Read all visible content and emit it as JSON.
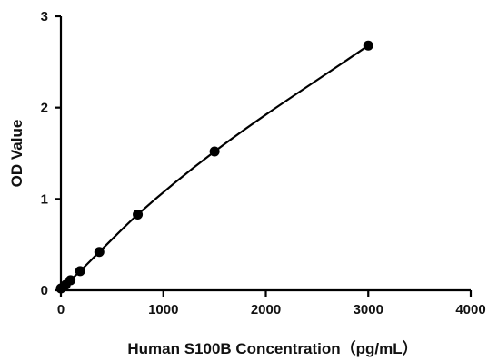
{
  "chart_data": {
    "type": "scatter",
    "title": "",
    "xlabel": "Human S100B  Concentration（pg/mL）",
    "ylabel": "OD Value",
    "xlim": [
      0,
      4000
    ],
    "ylim": [
      0,
      3
    ],
    "x_ticks": [
      0,
      1000,
      2000,
      3000,
      4000
    ],
    "y_ticks": [
      0,
      1,
      2,
      3
    ],
    "grid": false,
    "legend": "none",
    "colors": {
      "axis": "#000000",
      "points": "#000000",
      "curve": "#000000"
    },
    "series": [
      {
        "x": [
          0,
          46.875,
          93.75,
          187.5,
          375,
          750,
          1500,
          3000
        ],
        "y": [
          0.02,
          0.06,
          0.11,
          0.21,
          0.42,
          0.83,
          1.52,
          2.68
        ],
        "fit_curve": true
      }
    ]
  }
}
